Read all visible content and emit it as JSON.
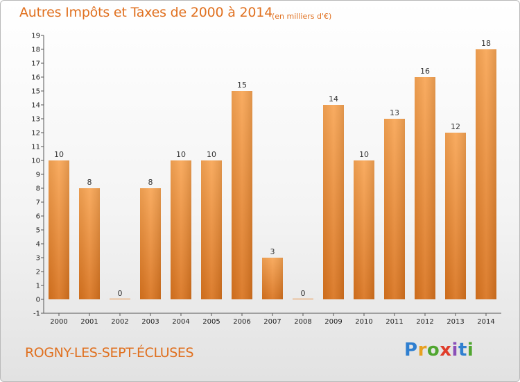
{
  "header": {
    "title": "Autres Impôts et Taxes de 2000 à 2014",
    "subtitle": "(en milliers d'€)"
  },
  "footer": {
    "commune": "ROGNY-LES-SEPT-ÉCLUSES",
    "logo": [
      "P",
      "r",
      "o",
      "x",
      "i",
      "t",
      "i"
    ],
    "logo_colors": [
      "#2f7fd0",
      "#e8a020",
      "#50a630",
      "#e03c2a",
      "#8a4fb8",
      "#2f7fd0",
      "#50a630"
    ]
  },
  "chart_data": {
    "type": "bar",
    "title": "Autres Impôts et Taxes de 2000 à 2014",
    "subtitle": "(en milliers d'€)",
    "categories": [
      "2000",
      "2001",
      "2002",
      "2003",
      "2004",
      "2005",
      "2006",
      "2007",
      "2008",
      "2009",
      "2010",
      "2011",
      "2012",
      "2013",
      "2014"
    ],
    "values": [
      10,
      8,
      0,
      8,
      10,
      10,
      15,
      3,
      0,
      14,
      10,
      13,
      16,
      12,
      18
    ],
    "yticks": [
      "-1",
      "0",
      "1",
      "2",
      "3",
      "4",
      "5",
      "6",
      "7",
      "8",
      "9",
      "10",
      "11",
      "12",
      "13",
      "14",
      "15",
      "16",
      "17",
      "18",
      "19"
    ],
    "ylim": [
      -1,
      19
    ],
    "grid": false,
    "bar_color_top": "#f8a554",
    "bar_color_bottom": "#d9731e"
  }
}
